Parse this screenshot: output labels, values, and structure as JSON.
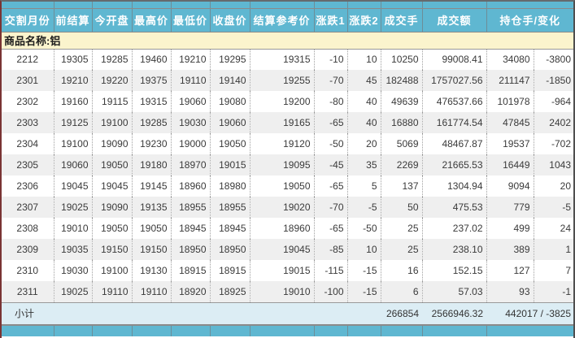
{
  "report": {
    "commodity_label": "商品名称:铝",
    "columns": [
      "交割月份",
      "前结算",
      "今开盘",
      "最高价",
      "最低价",
      "收盘价",
      "结算参考价",
      "涨跌1",
      "涨跌2",
      "成交手",
      "成交额",
      "持仓手/变化"
    ],
    "rows": [
      [
        "2212",
        "19305",
        "19285",
        "19460",
        "19210",
        "19295",
        "19315",
        "-10",
        "10",
        "10250",
        "99008.41",
        "34080",
        "-3800"
      ],
      [
        "2301",
        "19210",
        "19220",
        "19375",
        "19110",
        "19140",
        "19255",
        "-70",
        "45",
        "182488",
        "1757027.56",
        "211147",
        "-1850"
      ],
      [
        "2302",
        "19160",
        "19115",
        "19315",
        "19060",
        "19080",
        "19200",
        "-80",
        "40",
        "49639",
        "476537.66",
        "101978",
        "-964"
      ],
      [
        "2303",
        "19125",
        "19100",
        "19285",
        "19030",
        "19060",
        "19165",
        "-65",
        "40",
        "16880",
        "161774.54",
        "47845",
        "2402"
      ],
      [
        "2304",
        "19100",
        "19090",
        "19230",
        "19000",
        "19050",
        "19120",
        "-50",
        "20",
        "5069",
        "48467.87",
        "19537",
        "-702"
      ],
      [
        "2305",
        "19060",
        "19050",
        "19180",
        "18970",
        "19015",
        "19095",
        "-45",
        "35",
        "2269",
        "21665.53",
        "16449",
        "1043"
      ],
      [
        "2306",
        "19045",
        "19045",
        "19145",
        "18960",
        "18980",
        "19050",
        "-65",
        "5",
        "137",
        "1304.94",
        "9094",
        "20"
      ],
      [
        "2307",
        "19025",
        "19090",
        "19135",
        "18955",
        "18955",
        "19020",
        "-70",
        "-5",
        "50",
        "475.53",
        "779",
        "-5"
      ],
      [
        "2308",
        "19010",
        "19050",
        "19050",
        "18945",
        "18945",
        "18960",
        "-65",
        "-50",
        "25",
        "237.02",
        "499",
        "24"
      ],
      [
        "2309",
        "19035",
        "19150",
        "19150",
        "18950",
        "18950",
        "19045",
        "-85",
        "10",
        "25",
        "238.10",
        "389",
        "1"
      ],
      [
        "2310",
        "19030",
        "19100",
        "19130",
        "18915",
        "18915",
        "19015",
        "-115",
        "-15",
        "16",
        "152.15",
        "127",
        "7"
      ],
      [
        "2311",
        "19025",
        "19110",
        "19110",
        "18920",
        "18925",
        "19010",
        "-100",
        "-15",
        "6",
        "57.03",
        "93",
        "-1"
      ]
    ],
    "subtotal": {
      "label": "小计",
      "volume": "266854",
      "turnover": "2566946.32",
      "open_interest_change": "442017 / -3825"
    },
    "colors": {
      "header_bg": "#5fb7d1",
      "header_text": "#ffffff",
      "commodity_band_bg": "#fbf4cd",
      "row_alt_bg": "#efefef",
      "subtotal_bg": "#dcedf4",
      "left_frame_border": "#7a3434"
    }
  }
}
